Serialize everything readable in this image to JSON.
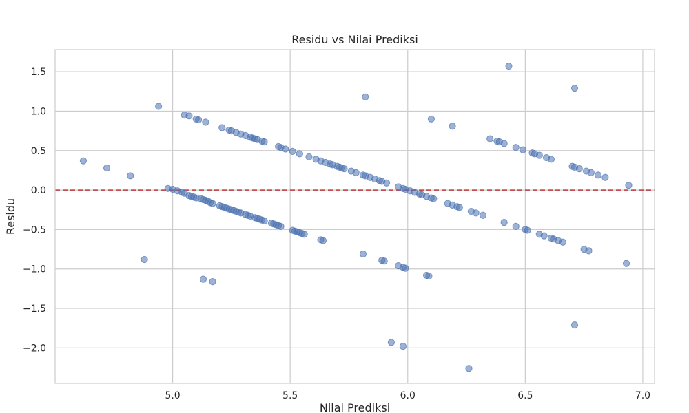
{
  "chart_data": {
    "type": "scatter",
    "title": "Residu vs Nilai Prediksi",
    "xlabel": "Nilai Prediksi",
    "ylabel": "Residu",
    "xlim": [
      4.5,
      7.05
    ],
    "ylim": [
      -2.45,
      1.78
    ],
    "xticks": [
      5.0,
      5.5,
      6.0,
      6.5,
      7.0
    ],
    "xtick_labels": [
      "5.0",
      "5.5",
      "6.0",
      "6.5",
      "7.0"
    ],
    "yticks": [
      1.5,
      1.0,
      0.5,
      0.0,
      -0.5,
      -1.0,
      -1.5,
      -2.0
    ],
    "ytick_labels": [
      "1.5",
      "1.0",
      "0.5",
      "0.0",
      "−0.5",
      "−1.0",
      "−1.5",
      "−2.0"
    ],
    "grid": true,
    "reference_line": {
      "y": 0.0,
      "style": "dashed",
      "color": "#c44e52"
    },
    "colors": {
      "points": "#4c72b0",
      "grid": "#cccccc",
      "background": "#ffffff"
    },
    "series": [
      {
        "points": [
          [
            4.62,
            0.37
          ],
          [
            4.72,
            0.28
          ],
          [
            4.82,
            0.18
          ],
          [
            4.88,
            -0.88
          ],
          [
            4.94,
            1.06
          ],
          [
            4.98,
            0.02
          ],
          [
            5.0,
            0.01
          ],
          [
            5.02,
            -0.01
          ],
          [
            5.04,
            -0.03
          ],
          [
            5.05,
            -0.04
          ],
          [
            5.07,
            -0.07
          ],
          [
            5.08,
            -0.08
          ],
          [
            5.09,
            -0.09
          ],
          [
            5.1,
            -0.1
          ],
          [
            5.12,
            -0.11
          ],
          [
            5.13,
            -0.12
          ],
          [
            5.14,
            -0.13
          ],
          [
            5.15,
            -0.14
          ],
          [
            5.16,
            -0.16
          ],
          [
            5.17,
            -0.17
          ],
          [
            5.2,
            -0.2
          ],
          [
            5.21,
            -0.21
          ],
          [
            5.22,
            -0.22
          ],
          [
            5.23,
            -0.23
          ],
          [
            5.24,
            -0.24
          ],
          [
            5.25,
            -0.25
          ],
          [
            5.26,
            -0.26
          ],
          [
            5.27,
            -0.27
          ],
          [
            5.28,
            -0.28
          ],
          [
            5.29,
            -0.29
          ],
          [
            5.31,
            -0.31
          ],
          [
            5.32,
            -0.32
          ],
          [
            5.33,
            -0.33
          ],
          [
            5.35,
            -0.35
          ],
          [
            5.36,
            -0.36
          ],
          [
            5.37,
            -0.37
          ],
          [
            5.38,
            -0.38
          ],
          [
            5.39,
            -0.39
          ],
          [
            5.42,
            -0.42
          ],
          [
            5.43,
            -0.43
          ],
          [
            5.44,
            -0.44
          ],
          [
            5.45,
            -0.45
          ],
          [
            5.46,
            -0.46
          ],
          [
            5.51,
            -0.51
          ],
          [
            5.52,
            -0.52
          ],
          [
            5.53,
            -0.53
          ],
          [
            5.54,
            -0.54
          ],
          [
            5.55,
            -0.55
          ],
          [
            5.56,
            -0.56
          ],
          [
            5.63,
            -0.63
          ],
          [
            5.64,
            -0.64
          ],
          [
            5.81,
            -0.81
          ],
          [
            5.89,
            -0.89
          ],
          [
            5.9,
            -0.9
          ],
          [
            5.96,
            -0.96
          ],
          [
            5.98,
            -0.98
          ],
          [
            5.99,
            -0.99
          ],
          [
            6.08,
            -1.08
          ],
          [
            6.09,
            -1.09
          ],
          [
            5.05,
            0.95
          ],
          [
            5.07,
            0.94
          ],
          [
            5.1,
            0.9
          ],
          [
            5.11,
            0.89
          ],
          [
            5.14,
            0.86
          ],
          [
            5.21,
            0.79
          ],
          [
            5.24,
            0.76
          ],
          [
            5.25,
            0.75
          ],
          [
            5.27,
            0.73
          ],
          [
            5.29,
            0.71
          ],
          [
            5.31,
            0.69
          ],
          [
            5.33,
            0.67
          ],
          [
            5.34,
            0.66
          ],
          [
            5.35,
            0.65
          ],
          [
            5.36,
            0.64
          ],
          [
            5.38,
            0.62
          ],
          [
            5.39,
            0.61
          ],
          [
            5.45,
            0.55
          ],
          [
            5.46,
            0.54
          ],
          [
            5.48,
            0.52
          ],
          [
            5.51,
            0.49
          ],
          [
            5.54,
            0.46
          ],
          [
            5.58,
            0.42
          ],
          [
            5.61,
            0.39
          ],
          [
            5.63,
            0.37
          ],
          [
            5.65,
            0.35
          ],
          [
            5.67,
            0.33
          ],
          [
            5.68,
            0.32
          ],
          [
            5.7,
            0.3
          ],
          [
            5.71,
            0.29
          ],
          [
            5.72,
            0.28
          ],
          [
            5.73,
            0.27
          ],
          [
            5.76,
            0.24
          ],
          [
            5.78,
            0.22
          ],
          [
            5.81,
            0.19
          ],
          [
            5.82,
            0.18
          ],
          [
            5.84,
            0.16
          ],
          [
            5.86,
            0.14
          ],
          [
            5.88,
            0.12
          ],
          [
            5.89,
            0.11
          ],
          [
            5.91,
            0.09
          ],
          [
            5.96,
            0.04
          ],
          [
            5.98,
            0.02
          ],
          [
            5.99,
            0.01
          ],
          [
            6.01,
            -0.01
          ],
          [
            6.03,
            -0.03
          ],
          [
            6.05,
            -0.05
          ],
          [
            6.06,
            -0.06
          ],
          [
            6.08,
            -0.08
          ],
          [
            6.1,
            -0.1
          ],
          [
            6.11,
            -0.11
          ],
          [
            6.17,
            -0.17
          ],
          [
            6.19,
            -0.19
          ],
          [
            6.21,
            -0.21
          ],
          [
            6.22,
            -0.22
          ],
          [
            6.27,
            -0.27
          ],
          [
            6.29,
            -0.29
          ],
          [
            6.32,
            -0.32
          ],
          [
            6.41,
            -0.41
          ],
          [
            6.46,
            -0.46
          ],
          [
            6.5,
            -0.5
          ],
          [
            6.51,
            -0.51
          ],
          [
            6.56,
            -0.56
          ],
          [
            6.58,
            -0.58
          ],
          [
            6.61,
            -0.61
          ],
          [
            6.62,
            -0.62
          ],
          [
            6.64,
            -0.64
          ],
          [
            6.66,
            -0.66
          ],
          [
            6.75,
            -0.75
          ],
          [
            6.77,
            -0.77
          ],
          [
            6.93,
            -0.93
          ],
          [
            6.35,
            0.65
          ],
          [
            6.38,
            0.62
          ],
          [
            6.39,
            0.61
          ],
          [
            6.41,
            0.59
          ],
          [
            6.46,
            0.54
          ],
          [
            6.49,
            0.51
          ],
          [
            6.53,
            0.47
          ],
          [
            6.54,
            0.46
          ],
          [
            6.56,
            0.44
          ],
          [
            6.59,
            0.41
          ],
          [
            6.61,
            0.39
          ],
          [
            6.7,
            0.3
          ],
          [
            6.71,
            0.29
          ],
          [
            6.73,
            0.27
          ],
          [
            6.76,
            0.24
          ],
          [
            6.78,
            0.22
          ],
          [
            6.81,
            0.19
          ],
          [
            6.84,
            0.16
          ],
          [
            6.94,
            0.06
          ],
          [
            5.13,
            -1.13
          ],
          [
            5.17,
            -1.16
          ],
          [
            5.82,
            1.18
          ],
          [
            6.1,
            0.9
          ],
          [
            6.19,
            0.81
          ],
          [
            6.43,
            1.57
          ],
          [
            6.71,
            1.29
          ],
          [
            6.71,
            -1.71
          ],
          [
            5.93,
            -1.93
          ],
          [
            5.98,
            -1.98
          ],
          [
            6.26,
            -2.26
          ]
        ]
      }
    ]
  }
}
